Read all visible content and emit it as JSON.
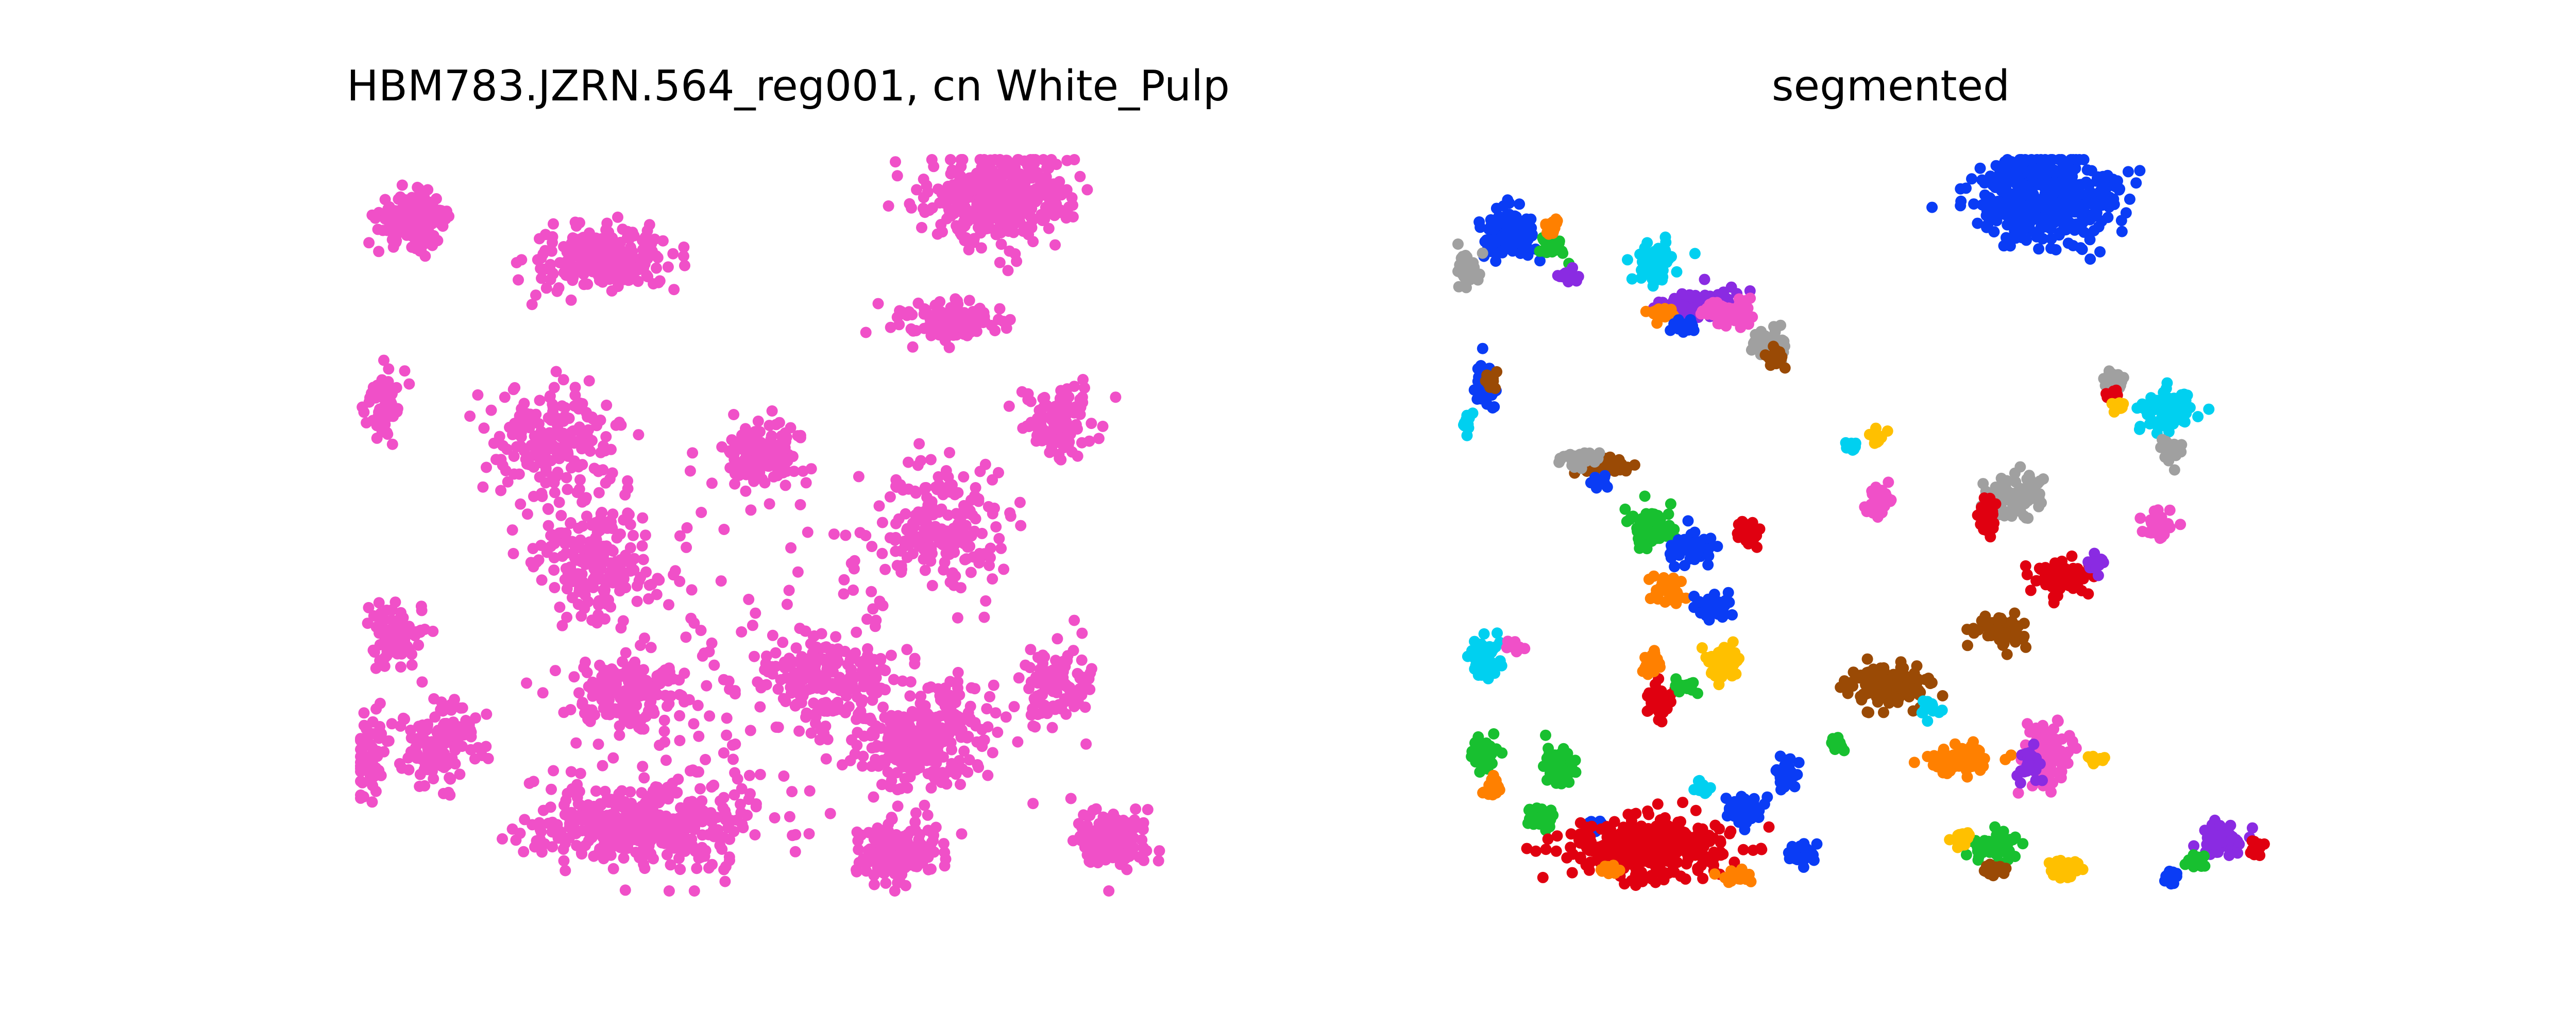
{
  "chart_data": [
    {
      "type": "scatter",
      "title": "HBM783.JZRN.564_reg001, cn White_Pulp",
      "axes_visible": false,
      "xlim": [
        0,
        1000
      ],
      "ylim": [
        0,
        1000
      ],
      "color": "#f050c8",
      "clusters": [
        {
          "x": 60,
          "y": 920,
          "sx": 35,
          "sy": 30,
          "n": 200
        },
        {
          "x": 290,
          "y": 865,
          "sx": 80,
          "sy": 40,
          "n": 210
        },
        {
          "x": 760,
          "y": 950,
          "sx": 75,
          "sy": 55,
          "n": 420
        },
        {
          "x": 235,
          "y": 615,
          "sx": 70,
          "sy": 70,
          "n": 190
        },
        {
          "x": 280,
          "y": 450,
          "sx": 65,
          "sy": 70,
          "n": 200
        },
        {
          "x": 480,
          "y": 600,
          "sx": 45,
          "sy": 40,
          "n": 120
        },
        {
          "x": 705,
          "y": 780,
          "sx": 60,
          "sy": 25,
          "n": 120
        },
        {
          "x": 830,
          "y": 640,
          "sx": 40,
          "sy": 45,
          "n": 110
        },
        {
          "x": 690,
          "y": 500,
          "sx": 70,
          "sy": 70,
          "n": 190
        },
        {
          "x": 40,
          "y": 350,
          "sx": 30,
          "sy": 40,
          "n": 80
        },
        {
          "x": 320,
          "y": 270,
          "sx": 60,
          "sy": 50,
          "n": 170
        },
        {
          "x": 560,
          "y": 290,
          "sx": 70,
          "sy": 45,
          "n": 180
        },
        {
          "x": 830,
          "y": 280,
          "sx": 40,
          "sy": 55,
          "n": 100
        },
        {
          "x": 90,
          "y": 200,
          "sx": 45,
          "sy": 50,
          "n": 130
        },
        {
          "x": 340,
          "y": 90,
          "sx": 120,
          "sy": 55,
          "n": 400
        },
        {
          "x": 670,
          "y": 210,
          "sx": 70,
          "sy": 60,
          "n": 260
        },
        {
          "x": 640,
          "y": 50,
          "sx": 45,
          "sy": 35,
          "n": 160
        },
        {
          "x": 890,
          "y": 70,
          "sx": 40,
          "sy": 35,
          "n": 150
        },
        {
          "x": 30,
          "y": 670,
          "sx": 20,
          "sy": 45,
          "n": 70
        },
        {
          "x": 10,
          "y": 180,
          "sx": 20,
          "sy": 60,
          "n": 60
        },
        {
          "x": 500,
          "y": 300,
          "sx": 220,
          "sy": 220,
          "n": 160
        }
      ]
    },
    {
      "type": "scatter",
      "title": "segmented",
      "axes_visible": false,
      "xlim": [
        0,
        1000
      ],
      "ylim": [
        0,
        1000
      ],
      "clusters": [
        {
          "x": 60,
          "y": 900,
          "sx": 28,
          "sy": 28,
          "n": 130,
          "color": "#0a3cf5"
        },
        {
          "x": 10,
          "y": 850,
          "sx": 12,
          "sy": 20,
          "n": 40,
          "color": "#a0a0a0"
        },
        {
          "x": 110,
          "y": 880,
          "sx": 15,
          "sy": 15,
          "n": 30,
          "color": "#18c030"
        },
        {
          "x": 130,
          "y": 840,
          "sx": 10,
          "sy": 10,
          "n": 15,
          "color": "#8a2be2"
        },
        {
          "x": 110,
          "y": 910,
          "sx": 10,
          "sy": 10,
          "n": 15,
          "color": "#ff8000"
        },
        {
          "x": 235,
          "y": 860,
          "sx": 22,
          "sy": 25,
          "n": 60,
          "color": "#00d0f0"
        },
        {
          "x": 300,
          "y": 805,
          "sx": 45,
          "sy": 18,
          "n": 70,
          "color": "#8a2be2"
        },
        {
          "x": 320,
          "y": 790,
          "sx": 28,
          "sy": 18,
          "n": 55,
          "color": "#f050c8"
        },
        {
          "x": 365,
          "y": 750,
          "sx": 22,
          "sy": 20,
          "n": 45,
          "color": "#a0a0a0"
        },
        {
          "x": 380,
          "y": 730,
          "sx": 12,
          "sy": 12,
          "n": 25,
          "color": "#9a4a05"
        },
        {
          "x": 240,
          "y": 790,
          "sx": 15,
          "sy": 10,
          "n": 20,
          "color": "#ff8000"
        },
        {
          "x": 270,
          "y": 770,
          "sx": 15,
          "sy": 10,
          "n": 20,
          "color": "#0a3cf5"
        },
        {
          "x": 700,
          "y": 950,
          "sx": 70,
          "sy": 55,
          "n": 480,
          "color": "#0a3cf5"
        },
        {
          "x": 30,
          "y": 690,
          "sx": 10,
          "sy": 30,
          "n": 40,
          "color": "#0a3cf5"
        },
        {
          "x": 40,
          "y": 700,
          "sx": 8,
          "sy": 10,
          "n": 10,
          "color": "#9a4a05"
        },
        {
          "x": 10,
          "y": 640,
          "sx": 6,
          "sy": 15,
          "n": 15,
          "color": "#00d0f0"
        },
        {
          "x": 180,
          "y": 580,
          "sx": 30,
          "sy": 12,
          "n": 40,
          "color": "#9a4a05"
        },
        {
          "x": 140,
          "y": 590,
          "sx": 20,
          "sy": 12,
          "n": 30,
          "color": "#a0a0a0"
        },
        {
          "x": 170,
          "y": 560,
          "sx": 10,
          "sy": 10,
          "n": 12,
          "color": "#0a3cf5"
        },
        {
          "x": 230,
          "y": 500,
          "sx": 25,
          "sy": 25,
          "n": 60,
          "color": "#18c030"
        },
        {
          "x": 280,
          "y": 470,
          "sx": 25,
          "sy": 20,
          "n": 60,
          "color": "#0a3cf5"
        },
        {
          "x": 245,
          "y": 410,
          "sx": 20,
          "sy": 18,
          "n": 40,
          "color": "#ff8000"
        },
        {
          "x": 300,
          "y": 390,
          "sx": 20,
          "sy": 18,
          "n": 40,
          "color": "#0a3cf5"
        },
        {
          "x": 345,
          "y": 490,
          "sx": 12,
          "sy": 18,
          "n": 35,
          "color": "#e00010"
        },
        {
          "x": 315,
          "y": 310,
          "sx": 20,
          "sy": 22,
          "n": 60,
          "color": "#ffc000"
        },
        {
          "x": 240,
          "y": 260,
          "sx": 15,
          "sy": 20,
          "n": 40,
          "color": "#e00010"
        },
        {
          "x": 230,
          "y": 310,
          "sx": 10,
          "sy": 15,
          "n": 25,
          "color": "#ff8000"
        },
        {
          "x": 270,
          "y": 280,
          "sx": 10,
          "sy": 10,
          "n": 15,
          "color": "#18c030"
        },
        {
          "x": 510,
          "y": 280,
          "sx": 40,
          "sy": 25,
          "n": 130,
          "color": "#9a4a05"
        },
        {
          "x": 560,
          "y": 250,
          "sx": 10,
          "sy": 10,
          "n": 15,
          "color": "#00d0f0"
        },
        {
          "x": 650,
          "y": 355,
          "sx": 30,
          "sy": 20,
          "n": 60,
          "color": "#9a4a05"
        },
        {
          "x": 500,
          "y": 530,
          "sx": 12,
          "sy": 18,
          "n": 40,
          "color": "#f050c8"
        },
        {
          "x": 470,
          "y": 610,
          "sx": 8,
          "sy": 8,
          "n": 12,
          "color": "#00d0f0"
        },
        {
          "x": 500,
          "y": 620,
          "sx": 10,
          "sy": 8,
          "n": 15,
          "color": "#ffc000"
        },
        {
          "x": 660,
          "y": 540,
          "sx": 30,
          "sy": 30,
          "n": 80,
          "color": "#a0a0a0"
        },
        {
          "x": 630,
          "y": 510,
          "sx": 10,
          "sy": 18,
          "n": 30,
          "color": "#e00010"
        },
        {
          "x": 720,
          "y": 430,
          "sx": 28,
          "sy": 22,
          "n": 90,
          "color": "#e00010"
        },
        {
          "x": 760,
          "y": 450,
          "sx": 10,
          "sy": 10,
          "n": 15,
          "color": "#8a2be2"
        },
        {
          "x": 830,
          "y": 500,
          "sx": 15,
          "sy": 20,
          "n": 35,
          "color": "#f050c8"
        },
        {
          "x": 850,
          "y": 660,
          "sx": 30,
          "sy": 25,
          "n": 80,
          "color": "#00d0f0"
        },
        {
          "x": 850,
          "y": 600,
          "sx": 12,
          "sy": 15,
          "n": 25,
          "color": "#a0a0a0"
        },
        {
          "x": 780,
          "y": 700,
          "sx": 10,
          "sy": 12,
          "n": 20,
          "color": "#a0a0a0"
        },
        {
          "x": 780,
          "y": 680,
          "sx": 8,
          "sy": 8,
          "n": 12,
          "color": "#e00010"
        },
        {
          "x": 790,
          "y": 660,
          "sx": 8,
          "sy": 8,
          "n": 10,
          "color": "#ffc000"
        },
        {
          "x": 30,
          "y": 320,
          "sx": 15,
          "sy": 30,
          "n": 50,
          "color": "#00d0f0"
        },
        {
          "x": 70,
          "y": 335,
          "sx": 10,
          "sy": 10,
          "n": 15,
          "color": "#f050c8"
        },
        {
          "x": 30,
          "y": 190,
          "sx": 12,
          "sy": 20,
          "n": 50,
          "color": "#18c030"
        },
        {
          "x": 40,
          "y": 140,
          "sx": 10,
          "sy": 12,
          "n": 20,
          "color": "#ff8000"
        },
        {
          "x": 120,
          "y": 170,
          "sx": 15,
          "sy": 25,
          "n": 50,
          "color": "#18c030"
        },
        {
          "x": 100,
          "y": 100,
          "sx": 15,
          "sy": 15,
          "n": 30,
          "color": "#18c030"
        },
        {
          "x": 160,
          "y": 90,
          "sx": 8,
          "sy": 8,
          "n": 12,
          "color": "#0a3cf5"
        },
        {
          "x": 230,
          "y": 60,
          "sx": 90,
          "sy": 35,
          "n": 350,
          "color": "#e00010"
        },
        {
          "x": 340,
          "y": 110,
          "sx": 20,
          "sy": 18,
          "n": 50,
          "color": "#0a3cf5"
        },
        {
          "x": 410,
          "y": 50,
          "sx": 15,
          "sy": 12,
          "n": 40,
          "color": "#0a3cf5"
        },
        {
          "x": 390,
          "y": 160,
          "sx": 12,
          "sy": 20,
          "n": 40,
          "color": "#0a3cf5"
        },
        {
          "x": 290,
          "y": 140,
          "sx": 10,
          "sy": 8,
          "n": 15,
          "color": "#00d0f0"
        },
        {
          "x": 180,
          "y": 30,
          "sx": 10,
          "sy": 6,
          "n": 12,
          "color": "#ff8000"
        },
        {
          "x": 330,
          "y": 20,
          "sx": 15,
          "sy": 8,
          "n": 20,
          "color": "#ff8000"
        },
        {
          "x": 600,
          "y": 180,
          "sx": 35,
          "sy": 18,
          "n": 90,
          "color": "#ff8000"
        },
        {
          "x": 700,
          "y": 190,
          "sx": 25,
          "sy": 35,
          "n": 120,
          "color": "#f050c8"
        },
        {
          "x": 680,
          "y": 170,
          "sx": 12,
          "sy": 18,
          "n": 30,
          "color": "#8a2be2"
        },
        {
          "x": 640,
          "y": 60,
          "sx": 25,
          "sy": 18,
          "n": 45,
          "color": "#18c030"
        },
        {
          "x": 640,
          "y": 30,
          "sx": 15,
          "sy": 8,
          "n": 25,
          "color": "#9a4a05"
        },
        {
          "x": 720,
          "y": 30,
          "sx": 15,
          "sy": 12,
          "n": 30,
          "color": "#ffc000"
        },
        {
          "x": 600,
          "y": 70,
          "sx": 12,
          "sy": 12,
          "n": 20,
          "color": "#ffc000"
        },
        {
          "x": 910,
          "y": 70,
          "sx": 25,
          "sy": 20,
          "n": 70,
          "color": "#8a2be2"
        },
        {
          "x": 880,
          "y": 40,
          "sx": 12,
          "sy": 10,
          "n": 25,
          "color": "#18c030"
        },
        {
          "x": 850,
          "y": 20,
          "sx": 10,
          "sy": 10,
          "n": 15,
          "color": "#0a3cf5"
        },
        {
          "x": 950,
          "y": 60,
          "sx": 8,
          "sy": 10,
          "n": 15,
          "color": "#e00010"
        },
        {
          "x": 760,
          "y": 180,
          "sx": 10,
          "sy": 8,
          "n": 15,
          "color": "#ffc000"
        },
        {
          "x": 450,
          "y": 200,
          "sx": 8,
          "sy": 8,
          "n": 12,
          "color": "#18c030"
        }
      ]
    }
  ]
}
